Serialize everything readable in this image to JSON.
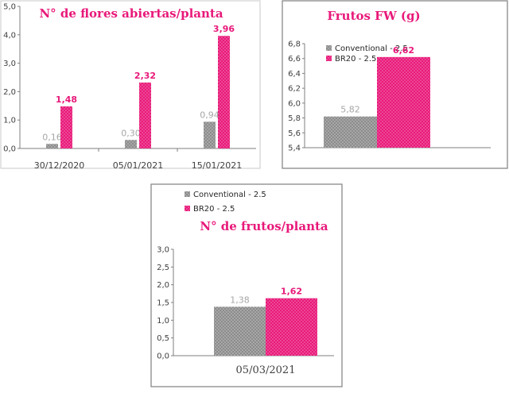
{
  "colors": {
    "conventional": "#8c8c8c",
    "br20": "#e8197a",
    "conventional_label": "#a6a6a6",
    "br20_label": "#e8197a",
    "title": "#e8197a",
    "axis": "#7f7f7f"
  },
  "chart_data": [
    {
      "type": "bar",
      "title": "N° de flores abiertas/planta",
      "categories": [
        "30/12/2020",
        "05/01/2021",
        "15/01/2021"
      ],
      "series": [
        {
          "name": "",
          "values": [
            0.16,
            0.3,
            0.94
          ],
          "labels": [
            "0,16",
            "0,30",
            "0,94"
          ]
        },
        {
          "name": "",
          "values": [
            1.48,
            2.32,
            3.96
          ],
          "labels": [
            "1,48",
            "2,32",
            "3,96"
          ]
        }
      ],
      "ylim": [
        0,
        5
      ],
      "yticks": [
        "0,0",
        "1,0",
        "2,0",
        "3,0",
        "4,0",
        "5,0"
      ],
      "grid": false
    },
    {
      "type": "bar",
      "title": "Frutos FW (g)",
      "categories": [
        ""
      ],
      "series": [
        {
          "name": "Conventional - 2.5",
          "values": [
            5.82
          ],
          "labels": [
            "5,82"
          ]
        },
        {
          "name": "BR20 - 2.5",
          "values": [
            6.62
          ],
          "labels": [
            "6,62"
          ]
        }
      ],
      "ylim": [
        5.4,
        6.8
      ],
      "yticks": [
        "5,4",
        "5,6",
        "5,8",
        "6,0",
        "6,2",
        "6,4",
        "6,6",
        "6,8"
      ],
      "legend": "top-left",
      "grid": false
    },
    {
      "type": "bar",
      "title": "N° de frutos/planta",
      "categories": [
        "05/03/2021"
      ],
      "series": [
        {
          "name": "Conventional - 2.5",
          "values": [
            1.38
          ],
          "labels": [
            "1,38"
          ]
        },
        {
          "name": "BR20 - 2.5",
          "values": [
            1.62
          ],
          "labels": [
            "1,62"
          ]
        }
      ],
      "ylim": [
        0,
        3
      ],
      "yticks": [
        "0,0",
        "0,5",
        "1,0",
        "1,5",
        "2,0",
        "2,5",
        "3,0"
      ],
      "legend": "top-left",
      "grid": false
    }
  ]
}
